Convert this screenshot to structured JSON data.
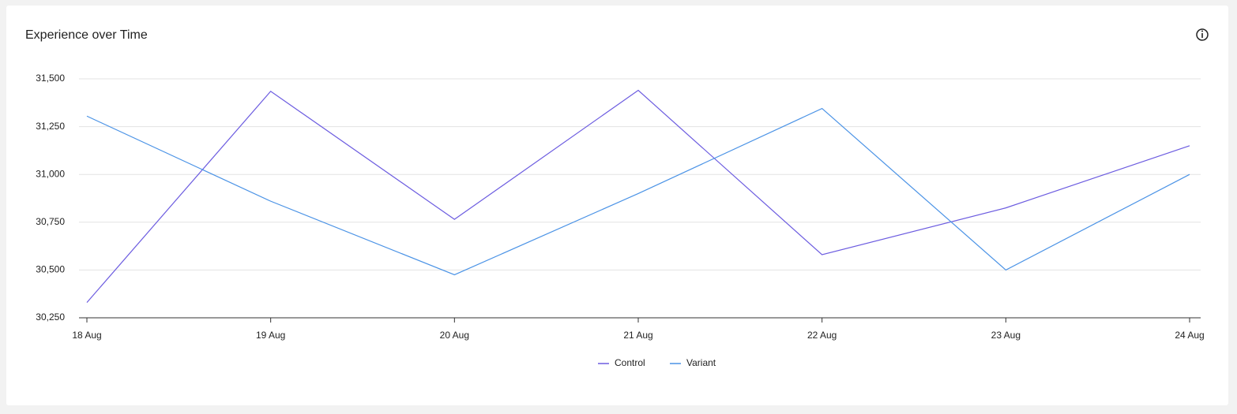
{
  "chart_data": {
    "type": "line",
    "title": "Experience over Time",
    "categories": [
      "18 Aug",
      "19 Aug",
      "20 Aug",
      "21 Aug",
      "22 Aug",
      "23 Aug",
      "24 Aug"
    ],
    "series": [
      {
        "name": "Control",
        "color": "#6c5ce0",
        "values": [
          30330,
          31435,
          30765,
          31440,
          30580,
          30825,
          31150
        ]
      },
      {
        "name": "Variant",
        "color": "#4b93e6",
        "values": [
          31305,
          30860,
          30475,
          30900,
          31345,
          30500,
          31000
        ]
      }
    ],
    "ylim": [
      30250,
      31500
    ],
    "yticks": [
      {
        "value": 30250,
        "label": "30,250"
      },
      {
        "value": 30500,
        "label": "30,500"
      },
      {
        "value": 30750,
        "label": "30,750"
      },
      {
        "value": 31000,
        "label": "31,000"
      },
      {
        "value": 31250,
        "label": "31,250"
      },
      {
        "value": 31500,
        "label": "31,500"
      }
    ],
    "grid": true,
    "legend": "bottom"
  }
}
